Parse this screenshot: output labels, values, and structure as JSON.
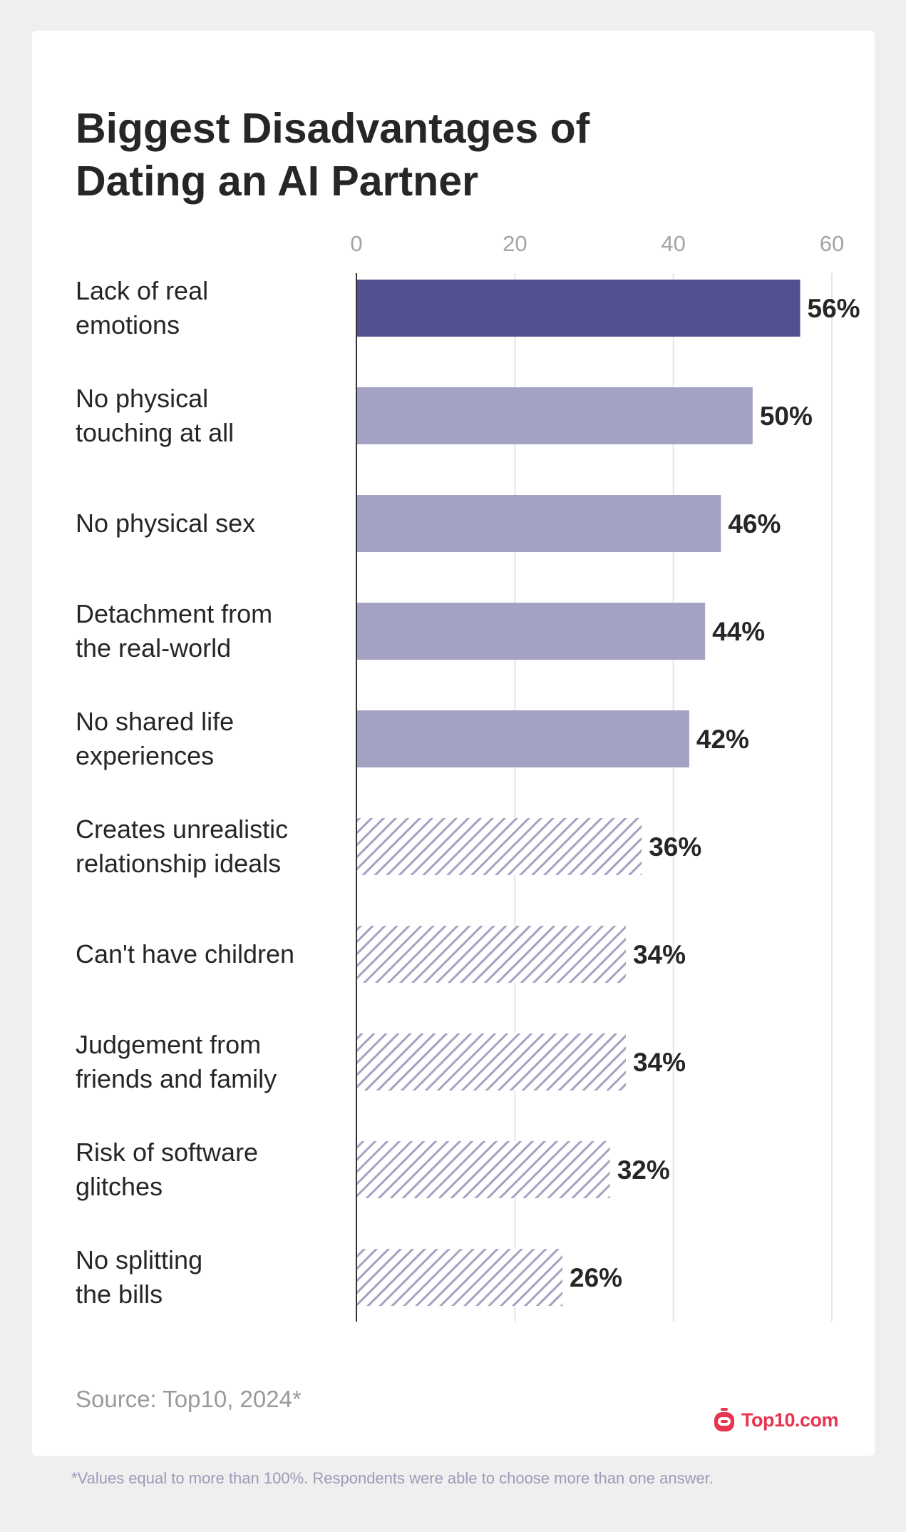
{
  "title": "Biggest Disadvantages of Dating an AI Partner",
  "source": "Source: Top10, 2024*",
  "logo_text": "Top10.com",
  "footnote": "*Values equal to more than 100%. Respondents were able to choose more than one answer.",
  "colors": {
    "highlight": "#52508e",
    "solid": "#a3a2c2",
    "hatch": "#a3a2c2",
    "label": "#262626",
    "tick": "#a3a3a3",
    "grid": "#e6e6e6",
    "brand": "#e8344e"
  },
  "chart_data": {
    "type": "bar",
    "orientation": "horizontal",
    "title": "Biggest Disadvantages of Dating an AI Partner",
    "xlabel": "",
    "ylabel": "",
    "xlim": [
      0,
      60
    ],
    "ticks": [
      0,
      20,
      40,
      60
    ],
    "grid": true,
    "categories": [
      [
        "Lack of real",
        "emotions"
      ],
      [
        "No physical",
        "touching at all"
      ],
      [
        "No physical sex"
      ],
      [
        "Detachment from",
        "the real-world"
      ],
      [
        "No shared life",
        "experiences"
      ],
      [
        "Creates unrealistic",
        "relationship ideals"
      ],
      [
        "Can't have children"
      ],
      [
        "Judgement from",
        "friends and family"
      ],
      [
        "Risk of software",
        "glitches"
      ],
      [
        "No splitting",
        "the bills"
      ]
    ],
    "values": [
      56,
      50,
      46,
      44,
      42,
      36,
      34,
      34,
      32,
      26
    ],
    "value_labels": [
      "56%",
      "50%",
      "46%",
      "44%",
      "42%",
      "36%",
      "34%",
      "34%",
      "32%",
      "26%"
    ],
    "styles": [
      "highlight",
      "solid",
      "solid",
      "solid",
      "solid",
      "hatch",
      "hatch",
      "hatch",
      "hatch",
      "hatch"
    ]
  }
}
